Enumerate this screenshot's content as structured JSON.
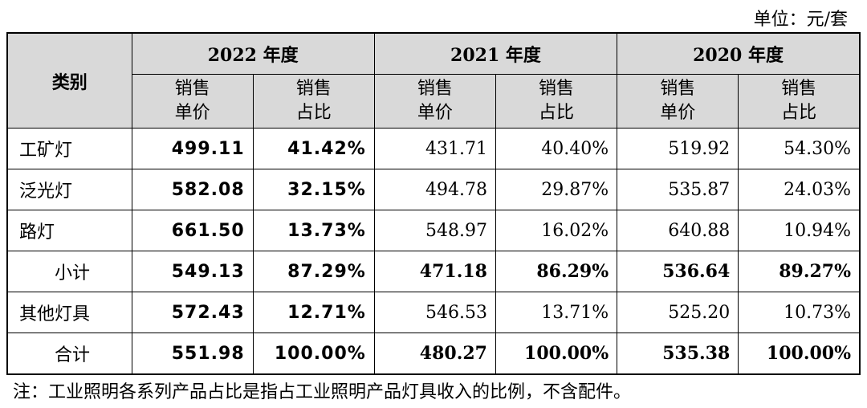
{
  "unit": "单位：元/套",
  "table": {
    "category_header": "类别",
    "years": [
      "2022 年度",
      "2021 年度",
      "2020 年度"
    ],
    "subheaders": [
      [
        "销售",
        "单价"
      ],
      [
        "销售",
        "占比"
      ],
      [
        "销售",
        "单价"
      ],
      [
        "销售",
        "占比"
      ],
      [
        "销售",
        "单价"
      ],
      [
        "销售",
        "占比"
      ]
    ],
    "rows": [
      {
        "label": "工矿灯",
        "cells": [
          "499.11",
          "41.42%",
          "431.71",
          "40.40%",
          "519.92",
          "54.30%"
        ]
      },
      {
        "label": "泛光灯",
        "cells": [
          "582.08",
          "32.15%",
          "494.78",
          "29.87%",
          "535.87",
          "24.03%"
        ]
      },
      {
        "label": "路灯",
        "cells": [
          "661.50",
          "13.73%",
          "548.97",
          "16.02%",
          "640.88",
          "10.94%"
        ]
      },
      {
        "label": "小计",
        "cells": [
          "549.13",
          "87.29%",
          "471.18",
          "86.29%",
          "536.64",
          "89.27%"
        ]
      },
      {
        "label": "其他灯具",
        "cells": [
          "572.43",
          "12.71%",
          "546.53",
          "13.71%",
          "525.20",
          "10.73%"
        ]
      },
      {
        "label": "合计",
        "cells": [
          "551.98",
          "100.00%",
          "480.27",
          "100.00%",
          "535.38",
          "100.00%"
        ]
      }
    ]
  },
  "note": "注：工业照明各系列产品占比是指占工业照明产品灯具收入的比例，不含配件。"
}
